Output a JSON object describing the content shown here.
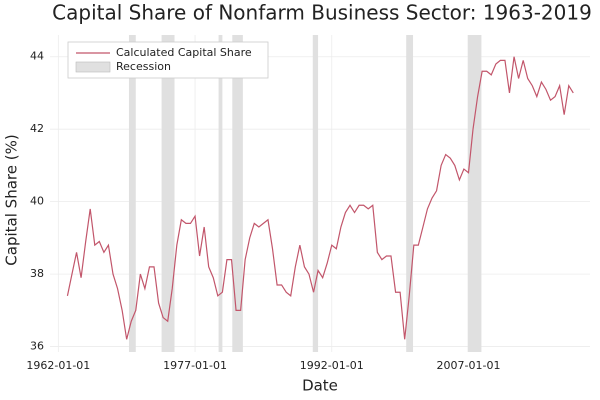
{
  "chart_data": {
    "type": "line",
    "title": "Capital Share of Nonfarm Business Sector: 1963-2019",
    "x_label": "Date",
    "y_label": "Capital Share (%)",
    "x": [
      "1963-01-01",
      "1963-07-01",
      "1964-01-01",
      "1964-07-01",
      "1965-01-01",
      "1965-07-01",
      "1966-01-01",
      "1966-07-01",
      "1967-01-01",
      "1967-07-01",
      "1968-01-01",
      "1968-07-01",
      "1969-01-01",
      "1969-07-01",
      "1970-01-01",
      "1970-07-01",
      "1971-01-01",
      "1971-07-01",
      "1972-01-01",
      "1972-07-01",
      "1973-01-01",
      "1973-07-01",
      "1974-01-01",
      "1974-07-01",
      "1975-01-01",
      "1975-07-01",
      "1976-01-01",
      "1976-07-01",
      "1977-01-01",
      "1977-07-01",
      "1978-01-01",
      "1978-07-01",
      "1979-01-01",
      "1979-07-01",
      "1980-01-01",
      "1980-07-01",
      "1981-01-01",
      "1981-07-01",
      "1982-01-01",
      "1982-07-01",
      "1983-01-01",
      "1983-07-01",
      "1984-01-01",
      "1984-07-01",
      "1985-01-01",
      "1985-07-01",
      "1986-01-01",
      "1986-07-01",
      "1987-01-01",
      "1987-07-01",
      "1988-01-01",
      "1988-07-01",
      "1989-01-01",
      "1989-07-01",
      "1990-01-01",
      "1990-07-01",
      "1991-01-01",
      "1991-07-01",
      "1992-01-01",
      "1992-07-01",
      "1993-01-01",
      "1993-07-01",
      "1994-01-01",
      "1994-07-01",
      "1995-01-01",
      "1995-07-01",
      "1996-01-01",
      "1996-07-01",
      "1997-01-01",
      "1997-07-01",
      "1998-01-01",
      "1998-07-01",
      "1999-01-01",
      "1999-07-01",
      "2000-01-01",
      "2000-07-01",
      "2001-01-01",
      "2001-07-01",
      "2002-01-01",
      "2002-07-01",
      "2003-01-01",
      "2003-07-01",
      "2004-01-01",
      "2004-07-01",
      "2005-01-01",
      "2005-07-01",
      "2006-01-01",
      "2006-07-01",
      "2007-01-01",
      "2007-07-01",
      "2008-01-01",
      "2008-07-01",
      "2009-01-01",
      "2009-07-01",
      "2010-01-01",
      "2010-07-01",
      "2011-01-01",
      "2011-07-01",
      "2012-01-01",
      "2012-07-01",
      "2013-01-01",
      "2013-07-01",
      "2014-01-01",
      "2014-07-01",
      "2015-01-01",
      "2015-07-01",
      "2016-01-01",
      "2016-07-01",
      "2017-01-01",
      "2017-07-01",
      "2018-01-01",
      "2018-07-01"
    ],
    "series": [
      {
        "name": "Calculated Capital Share",
        "color": "#c2566b",
        "values": [
          37.4,
          38.0,
          38.6,
          37.9,
          38.9,
          39.8,
          38.8,
          38.9,
          38.6,
          38.8,
          38.0,
          37.6,
          37.0,
          36.2,
          36.7,
          37.0,
          38.0,
          37.6,
          38.2,
          38.2,
          37.2,
          36.8,
          36.7,
          37.6,
          38.8,
          39.5,
          39.4,
          39.4,
          39.6,
          38.5,
          39.3,
          38.2,
          37.9,
          37.4,
          37.5,
          38.4,
          38.4,
          37.0,
          37.0,
          38.4,
          39.0,
          39.4,
          39.3,
          39.4,
          39.5,
          38.7,
          37.7,
          37.7,
          37.5,
          37.4,
          38.2,
          38.8,
          38.2,
          38.0,
          37.5,
          38.1,
          37.9,
          38.3,
          38.8,
          38.7,
          39.3,
          39.7,
          39.9,
          39.7,
          39.9,
          39.9,
          39.8,
          39.9,
          38.6,
          38.4,
          38.5,
          38.5,
          37.5,
          37.5,
          36.2,
          37.4,
          38.8,
          38.8,
          39.3,
          39.8,
          40.1,
          40.3,
          41.0,
          41.3,
          41.2,
          41.0,
          40.6,
          40.9,
          40.8,
          42.0,
          42.9,
          43.6,
          43.6,
          43.5,
          43.8,
          43.9,
          43.9,
          43.0,
          44.0,
          43.4,
          43.9,
          43.4,
          43.2,
          42.9,
          43.3,
          43.1,
          42.8,
          42.9,
          43.2,
          42.4,
          43.2,
          43.0
        ]
      }
    ],
    "recessions": {
      "name": "Recession",
      "color": "#e0e0e0",
      "periods": [
        [
          "1969-10-01",
          "1970-07-01"
        ],
        [
          "1973-05-01",
          "1974-10-01"
        ],
        [
          "1979-08-01",
          "1980-01-01"
        ],
        [
          "1981-02-01",
          "1982-04-01"
        ],
        [
          "1989-12-01",
          "1990-07-01"
        ],
        [
          "2000-03-01",
          "2000-12-01"
        ],
        [
          "2006-12-01",
          "2008-06-01"
        ]
      ]
    },
    "xlim": [
      "1961-02-01",
      "2020-05-01"
    ],
    "xticks": [
      "1962-01-01",
      "1977-01-01",
      "1992-01-01",
      "2007-01-01"
    ],
    "ylim": [
      35.85,
      44.6
    ],
    "yticks": [
      36,
      38,
      40,
      42,
      44
    ],
    "grid": true,
    "legend": "upper left"
  }
}
